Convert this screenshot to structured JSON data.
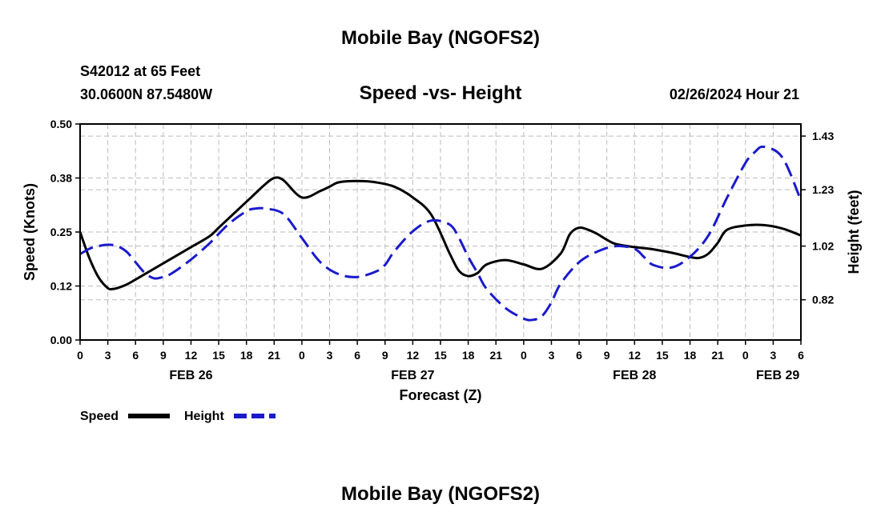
{
  "header": {
    "title": "Mobile Bay (NGOFS2)",
    "station": "S42012 at 65 Feet",
    "coords": "30.0600N  87.5480W",
    "chart_title": "Speed -vs- Height",
    "timestamp": "02/26/2024 Hour 21"
  },
  "footer": {
    "title": "Mobile Bay (NGOFS2)"
  },
  "colors": {
    "speed": "#000000",
    "height": "#1a1acc",
    "grid": "#bbbbbb"
  },
  "chart_data": {
    "type": "line",
    "title": "Speed -vs- Height",
    "xlabel": "Forecast (Z)",
    "ylabel": "Speed (Knots)",
    "y2label": "Height (feet)",
    "xlim": [
      0,
      78
    ],
    "ylim": [
      0,
      0.5
    ],
    "y2lim": [
      0.67,
      1.475
    ],
    "x_ticks": [
      0,
      3,
      6,
      9,
      12,
      15,
      18,
      21,
      24,
      27,
      30,
      33,
      36,
      39,
      42,
      45,
      48,
      51,
      54,
      57,
      60,
      63,
      66,
      69,
      72,
      75,
      78
    ],
    "x_tick_labels": [
      "0",
      "3",
      "6",
      "9",
      "12",
      "15",
      "18",
      "21",
      "0",
      "3",
      "6",
      "9",
      "12",
      "15",
      "18",
      "21",
      "0",
      "3",
      "6",
      "9",
      "12",
      "15",
      "18",
      "21",
      "0",
      "3",
      "6"
    ],
    "y_ticks": [
      0,
      0.125,
      0.25,
      0.375,
      0.5
    ],
    "y_tick_labels": [
      "0.00",
      "0.12",
      "0.25",
      "0.38",
      "0.50"
    ],
    "y2_ticks": [
      0.82,
      1.02,
      1.23,
      1.43
    ],
    "y2_tick_labels": [
      "0.82",
      "1.02",
      "1.23",
      "1.43"
    ],
    "date_labels": [
      {
        "x": 12,
        "label": "FEB 26"
      },
      {
        "x": 36,
        "label": "FEB 27"
      },
      {
        "x": 60,
        "label": "FEB 28"
      },
      {
        "x": 75.5,
        "label": "FEB 29"
      }
    ],
    "legend": [
      {
        "name": "Speed",
        "style": "solid"
      },
      {
        "name": "Height",
        "style": "dashed"
      }
    ],
    "series": [
      {
        "name": "Speed",
        "axis": "left",
        "x": [
          0,
          1,
          2,
          3,
          3.5,
          4,
          5,
          6,
          8,
          10,
          12,
          14,
          15,
          16,
          17,
          18,
          19,
          20,
          21,
          22,
          24,
          26,
          27,
          28,
          30,
          32,
          34,
          36,
          38,
          40,
          41,
          42,
          43,
          44,
          46,
          48,
          50,
          52,
          53,
          54,
          55,
          56,
          57,
          58,
          60,
          62,
          64,
          66,
          67,
          68,
          69,
          70,
          72,
          74,
          76,
          78
        ],
        "values": [
          0.25,
          0.19,
          0.145,
          0.12,
          0.118,
          0.12,
          0.128,
          0.14,
          0.165,
          0.19,
          0.215,
          0.24,
          0.26,
          0.28,
          0.3,
          0.32,
          0.34,
          0.36,
          0.375,
          0.37,
          0.33,
          0.345,
          0.355,
          0.365,
          0.368,
          0.365,
          0.355,
          0.33,
          0.29,
          0.2,
          0.16,
          0.148,
          0.155,
          0.175,
          0.185,
          0.175,
          0.165,
          0.2,
          0.245,
          0.26,
          0.255,
          0.245,
          0.232,
          0.222,
          0.215,
          0.21,
          0.202,
          0.192,
          0.19,
          0.2,
          0.225,
          0.255,
          0.265,
          0.266,
          0.258,
          0.242
        ]
      },
      {
        "name": "Height",
        "axis": "right",
        "x": [
          0,
          1,
          2,
          3,
          4,
          5,
          6,
          7,
          8,
          9,
          10,
          12,
          14,
          16,
          18,
          19,
          20,
          22,
          24,
          26,
          28,
          30,
          32,
          33,
          34,
          36,
          38,
          40,
          41,
          42,
          43,
          44,
          46,
          48,
          49,
          50,
          51,
          52,
          54,
          56,
          58,
          60,
          61,
          62,
          64,
          66,
          68,
          70,
          72,
          73,
          74,
          76,
          78
        ],
        "values": [
          0.99,
          1.01,
          1.02,
          1.025,
          1.02,
          1.0,
          0.96,
          0.92,
          0.9,
          0.905,
          0.92,
          0.97,
          1.03,
          1.1,
          1.15,
          1.16,
          1.16,
          1.14,
          1.05,
          0.96,
          0.915,
          0.905,
          0.925,
          0.95,
          1.0,
          1.075,
          1.115,
          1.1,
          1.05,
          0.98,
          0.92,
          0.86,
          0.79,
          0.75,
          0.745,
          0.76,
          0.81,
          0.88,
          0.96,
          1.0,
          1.02,
          1.01,
          0.98,
          0.95,
          0.94,
          0.98,
          1.06,
          1.2,
          1.33,
          1.37,
          1.39,
          1.35,
          1.19
        ]
      }
    ]
  }
}
